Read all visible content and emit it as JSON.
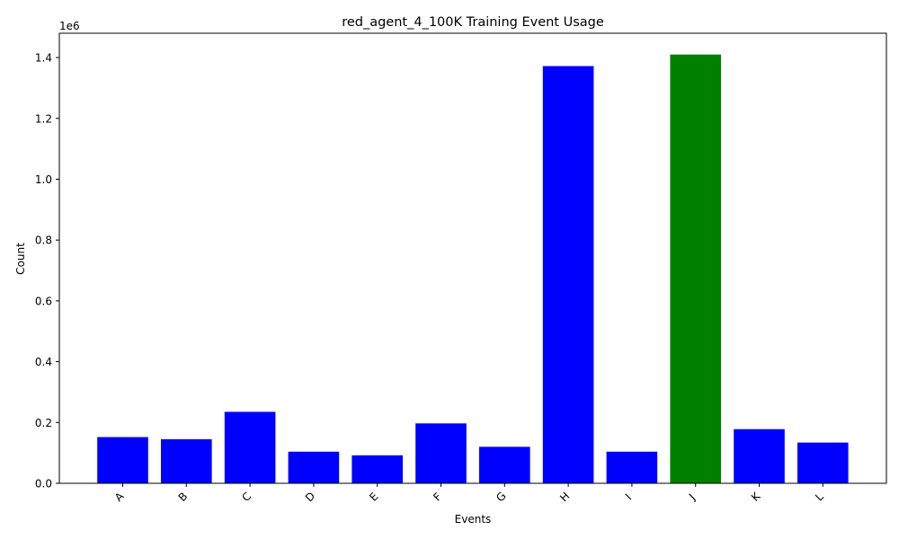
{
  "chart_data": {
    "type": "bar",
    "title": "red_agent_4_100K Training Event Usage",
    "xlabel": "Events",
    "ylabel": "Count",
    "y_offset_label": "1e6",
    "y_tick_values": [
      0.0,
      0.2,
      0.4,
      0.6,
      0.8,
      1.0,
      1.2,
      1.4
    ],
    "y_tick_labels": [
      "0.0",
      "0.2",
      "0.4",
      "0.6",
      "0.8",
      "1.0",
      "1.2",
      "1.4"
    ],
    "y_scale": 1000000,
    "ylim": [
      0,
      1480000
    ],
    "categories": [
      "A",
      "B",
      "C",
      "D",
      "E",
      "F",
      "G",
      "H",
      "I",
      "J",
      "K",
      "L"
    ],
    "values": [
      152000,
      145000,
      235000,
      104000,
      92000,
      197000,
      120000,
      1372000,
      104000,
      1410000,
      178000,
      134000
    ],
    "colors": [
      "#0000ff",
      "#0000ff",
      "#0000ff",
      "#0000ff",
      "#0000ff",
      "#0000ff",
      "#0000ff",
      "#0000ff",
      "#0000ff",
      "#008000",
      "#0000ff",
      "#0000ff"
    ],
    "grid": false,
    "x_tick_rotation_deg": 45
  }
}
